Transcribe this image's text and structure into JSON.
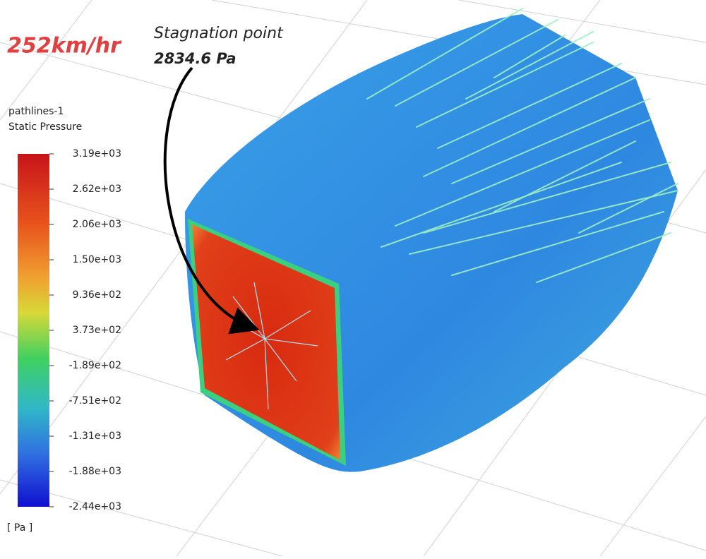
{
  "speed_label": "252km/hr",
  "annotation": {
    "title": "Stagnation point",
    "value": "2834.6 Pa"
  },
  "legend": {
    "title": [
      "pathlines-1",
      "Static Pressure"
    ],
    "tick_labels": [
      "3.19e+03",
      "2.62e+03",
      "2.06e+03",
      "1.50e+03",
      "9.36e+02",
      "3.73e+02",
      "-1.89e+02",
      "-7.51e+02",
      "-1.31e+03",
      "-1.88e+03",
      "-2.44e+03"
    ],
    "unit": "[ Pa ]"
  }
}
